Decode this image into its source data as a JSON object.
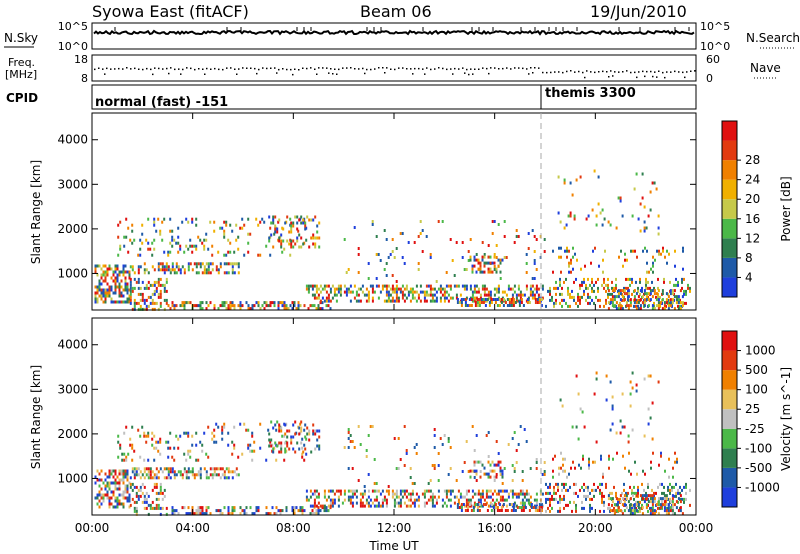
{
  "header": {
    "title": "Syowa East (fitACF)",
    "beam": "Beam 06",
    "date": "19/Jun/2010"
  },
  "side_labels": {
    "nsky": "N.Sky",
    "freq_line1": "Freq.",
    "freq_line2": "[MHz]",
    "cpid": "CPID",
    "nsearch": "N.Search",
    "nave": "Nave"
  },
  "panel_ticks": {
    "nsky_top": "10^5",
    "nsky_bottom": "10^0",
    "nsearch_top": "10^5",
    "nsearch_bottom": "10^0",
    "freq_top": "18",
    "freq_bottom": "8",
    "nave_top": "60",
    "nave_bottom": "0"
  },
  "cpid_modes": [
    {
      "label": "normal (fast) -151",
      "start_hour": 0
    },
    {
      "label": "themis 3300",
      "start_hour": 18
    }
  ],
  "chart_data": [
    {
      "type": "heatmap",
      "ylabel": "Slant Range [km]",
      "xlabel": "Time UT",
      "x_ticks": [
        "00:00",
        "04:00",
        "08:00",
        "12:00",
        "16:00",
        "20:00",
        "00:00"
      ],
      "y_ticks": [
        "1000",
        "2000",
        "3000",
        "4000"
      ],
      "xlim_hours": [
        0,
        24
      ],
      "ylim_km": [
        180,
        4600
      ],
      "colorbar": {
        "label": "Power [dB]",
        "ticks": [
          "4",
          "8",
          "12",
          "16",
          "20",
          "24",
          "28"
        ],
        "colors": [
          "#1f3fdc",
          "#1e5aa8",
          "#2f7f4f",
          "#4bb848",
          "#c6c94a",
          "#f0b000",
          "#f08000",
          "#e23a10",
          "#e01010"
        ]
      },
      "mode_change_hour": 18
    },
    {
      "type": "heatmap",
      "ylabel": "Slant Range [km]",
      "xlabel": "Time UT",
      "x_ticks": [
        "00:00",
        "04:00",
        "08:00",
        "12:00",
        "16:00",
        "20:00",
        "00:00"
      ],
      "y_ticks": [
        "1000",
        "2000",
        "3000",
        "4000"
      ],
      "xlim_hours": [
        0,
        24
      ],
      "ylim_km": [
        180,
        4600
      ],
      "colorbar": {
        "label": "Velocity [m s^-1]",
        "ticks": [
          "1000",
          "500",
          "100",
          "25",
          "-25",
          "-100",
          "-500",
          "-1000"
        ],
        "colors": [
          "#1f3fdc",
          "#1e5aa8",
          "#2f7f4f",
          "#4bb848",
          "#c0c0c0",
          "#e8c05a",
          "#f08000",
          "#e23a10",
          "#e01010"
        ]
      },
      "mode_change_hour": 18
    }
  ]
}
